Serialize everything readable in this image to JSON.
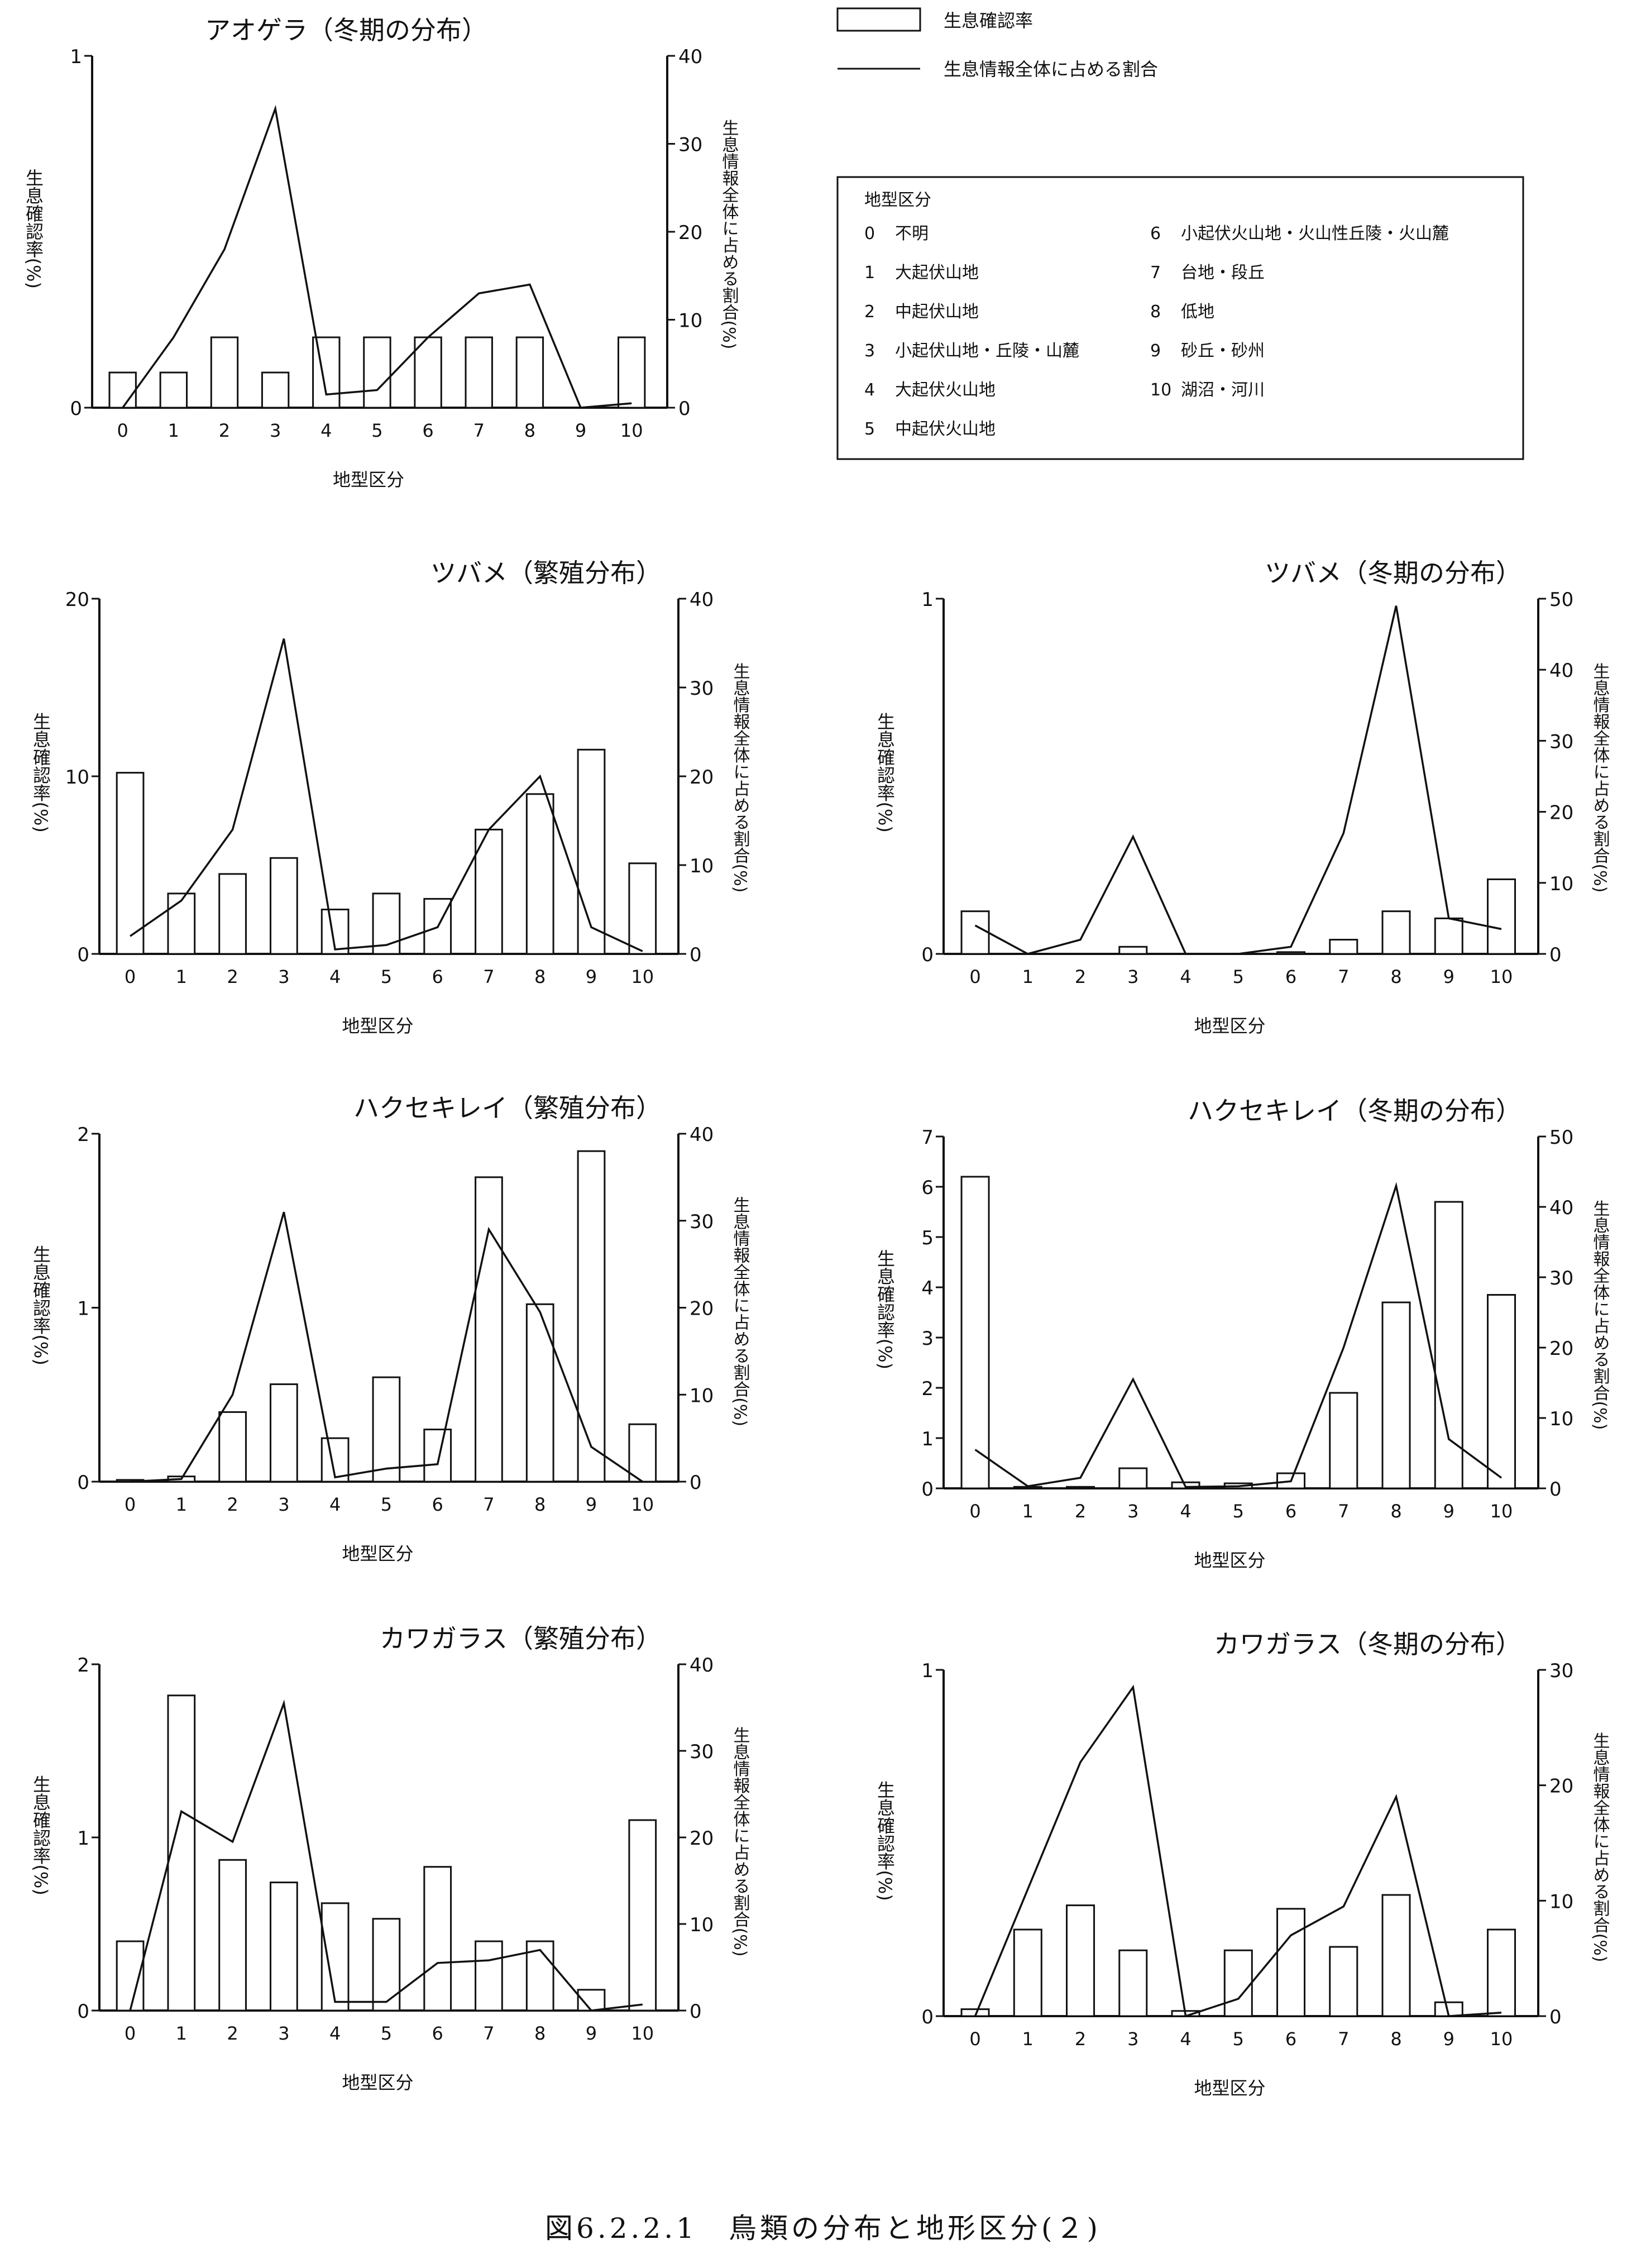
{
  "legend": {
    "bar_label": "生息確認率",
    "line_label": "生息情報全体に占める割合"
  },
  "terrain_key": {
    "title": "地型区分",
    "items": [
      {
        "code": "0",
        "label": "不明"
      },
      {
        "code": "1",
        "label": "大起伏山地"
      },
      {
        "code": "2",
        "label": "中起伏山地"
      },
      {
        "code": "3",
        "label": "小起伏山地・丘陵・山麓"
      },
      {
        "code": "4",
        "label": "大起伏火山地"
      },
      {
        "code": "5",
        "label": "中起伏火山地"
      },
      {
        "code": "6",
        "label": "小起伏火山地・火山性丘陵・火山麓"
      },
      {
        "code": "7",
        "label": "台地・段丘"
      },
      {
        "code": "8",
        "label": "低地"
      },
      {
        "code": "9",
        "label": "砂丘・砂州"
      },
      {
        "code": "10",
        "label": "湖沼・河川"
      }
    ]
  },
  "caption": "図6.2.2.1　鳥類の分布と地形区分(２)",
  "chart_data": [
    {
      "type": "bar",
      "title": "アオゲラ（冬期の分布）",
      "xlabel": "地型区分",
      "ylabel": "生息確認率(%)",
      "y2label": "生息情報全体に占める割合(%)",
      "categories": [
        "0",
        "1",
        "2",
        "3",
        "4",
        "5",
        "6",
        "7",
        "8",
        "9",
        "10"
      ],
      "ylim": [
        0,
        1
      ],
      "yticks": [
        "0",
        "1"
      ],
      "y2lim": [
        0,
        40
      ],
      "y2ticks": [
        "0",
        "10",
        "20",
        "30",
        "40"
      ],
      "series": [
        {
          "name": "生息確認率",
          "kind": "bar",
          "axis": "left",
          "values": [
            0.1,
            0.1,
            0.2,
            0.1,
            0.2,
            0.2,
            0.2,
            0.2,
            0.2,
            0,
            0.2
          ]
        },
        {
          "name": "生息情報全体に占める割合",
          "kind": "line",
          "axis": "right",
          "values": [
            0,
            8,
            18,
            34,
            1.5,
            2,
            8,
            13,
            14,
            0,
            0.5
          ]
        }
      ]
    },
    {
      "type": "bar",
      "title": "ツバメ（繁殖分布）",
      "xlabel": "地型区分",
      "ylabel": "生息確認率(%)",
      "y2label": "生息情報全体に占める割合(%)",
      "categories": [
        "0",
        "1",
        "2",
        "3",
        "4",
        "5",
        "6",
        "7",
        "8",
        "9",
        "10"
      ],
      "ylim": [
        0,
        20
      ],
      "yticks": [
        "0",
        "10",
        "20"
      ],
      "y2lim": [
        0,
        40
      ],
      "y2ticks": [
        "0",
        "10",
        "20",
        "30",
        "40"
      ],
      "series": [
        {
          "name": "生息確認率",
          "kind": "bar",
          "axis": "left",
          "values": [
            10.2,
            3.4,
            4.5,
            5.4,
            2.5,
            3.4,
            3.1,
            7,
            9,
            11.5,
            5.1
          ]
        },
        {
          "name": "生息情報全体に占める割合",
          "kind": "line",
          "axis": "right",
          "values": [
            2,
            6,
            14,
            35.5,
            0.5,
            1,
            3,
            14,
            20,
            3,
            0.3
          ]
        }
      ]
    },
    {
      "type": "bar",
      "title": "ツバメ（冬期の分布）",
      "xlabel": "地型区分",
      "ylabel": "生息確認率(%)",
      "y2label": "生息情報全体に占める割合(%)",
      "categories": [
        "0",
        "1",
        "2",
        "3",
        "4",
        "5",
        "6",
        "7",
        "8",
        "9",
        "10"
      ],
      "ylim": [
        0,
        1
      ],
      "yticks": [
        "0",
        "1"
      ],
      "y2lim": [
        0,
        50
      ],
      "y2ticks": [
        "0",
        "10",
        "20",
        "30",
        "40",
        "50"
      ],
      "series": [
        {
          "name": "生息確認率",
          "kind": "bar",
          "axis": "left",
          "values": [
            0.12,
            0,
            0,
            0.02,
            0,
            0,
            0.005,
            0.04,
            0.12,
            0.1,
            0.21
          ]
        },
        {
          "name": "生息情報全体に占める割合",
          "kind": "line",
          "axis": "right",
          "values": [
            4,
            0,
            2,
            16.5,
            0,
            0,
            1,
            17,
            49,
            5,
            3.5
          ]
        }
      ]
    },
    {
      "type": "bar",
      "title": "ハクセキレイ（繁殖分布）",
      "xlabel": "地型区分",
      "ylabel": "生息確認率(%)",
      "y2label": "生息情報全体に占める割合(%)",
      "categories": [
        "0",
        "1",
        "2",
        "3",
        "4",
        "5",
        "6",
        "7",
        "8",
        "9",
        "10"
      ],
      "ylim": [
        0,
        2
      ],
      "yticks": [
        "0",
        "1",
        "2"
      ],
      "y2lim": [
        0,
        40
      ],
      "y2ticks": [
        "0",
        "10",
        "20",
        "30",
        "40"
      ],
      "series": [
        {
          "name": "生息確認率",
          "kind": "bar",
          "axis": "left",
          "values": [
            0.01,
            0.03,
            0.4,
            0.56,
            0.25,
            0.6,
            0.3,
            1.75,
            1.02,
            1.9,
            0.33
          ]
        },
        {
          "name": "生息情報全体に占める割合",
          "kind": "line",
          "axis": "right",
          "values": [
            0,
            0.3,
            10,
            31,
            0.5,
            1.5,
            2,
            29,
            19.5,
            4,
            0
          ]
        }
      ]
    },
    {
      "type": "bar",
      "title": "ハクセキレイ（冬期の分布）",
      "xlabel": "地型区分",
      "ylabel": "生息確認率(%)",
      "y2label": "生息情報全体に占める割合(%)",
      "categories": [
        "0",
        "1",
        "2",
        "3",
        "4",
        "5",
        "6",
        "7",
        "8",
        "9",
        "10"
      ],
      "ylim": [
        0,
        7
      ],
      "yticks": [
        "0",
        "1",
        "2",
        "3",
        "4",
        "5",
        "6",
        "7"
      ],
      "y2lim": [
        0,
        50
      ],
      "y2ticks": [
        "0",
        "10",
        "20",
        "30",
        "40",
        "50"
      ],
      "series": [
        {
          "name": "生息確認率",
          "kind": "bar",
          "axis": "left",
          "values": [
            6.2,
            0.03,
            0.03,
            0.4,
            0.12,
            0.1,
            0.3,
            1.9,
            3.7,
            5.7,
            3.85
          ]
        },
        {
          "name": "生息情報全体に占める割合",
          "kind": "line",
          "axis": "right",
          "values": [
            5.5,
            0.3,
            1.5,
            15.5,
            0.2,
            0.3,
            1,
            20,
            43,
            7,
            1.5
          ]
        }
      ]
    },
    {
      "type": "bar",
      "title": "カワガラス（繁殖分布）",
      "xlabel": "地型区分",
      "ylabel": "生息確認率(%)",
      "y2label": "生息情報全体に占める割合(%)",
      "categories": [
        "0",
        "1",
        "2",
        "3",
        "4",
        "5",
        "6",
        "7",
        "8",
        "9",
        "10"
      ],
      "ylim": [
        0,
        2
      ],
      "yticks": [
        "0",
        "1",
        "2"
      ],
      "y2lim": [
        0,
        40
      ],
      "y2ticks": [
        "0",
        "10",
        "20",
        "30",
        "40"
      ],
      "series": [
        {
          "name": "生息確認率",
          "kind": "bar",
          "axis": "left",
          "values": [
            0.4,
            1.82,
            0.87,
            0.74,
            0.62,
            0.53,
            0.83,
            0.4,
            0.4,
            0.12,
            1.1
          ]
        },
        {
          "name": "生息情報全体に占める割合",
          "kind": "line",
          "axis": "right",
          "values": [
            0,
            23,
            19.5,
            35.5,
            1,
            1,
            5.5,
            5.8,
            7,
            0,
            0.7
          ]
        }
      ]
    },
    {
      "type": "bar",
      "title": "カワガラス（冬期の分布）",
      "xlabel": "地型区分",
      "ylabel": "生息確認率(%)",
      "y2label": "生息情報全体に占める割合(%)",
      "categories": [
        "0",
        "1",
        "2",
        "3",
        "4",
        "5",
        "6",
        "7",
        "8",
        "9",
        "10"
      ],
      "ylim": [
        0,
        1
      ],
      "yticks": [
        "0",
        "1"
      ],
      "y2lim": [
        0,
        30
      ],
      "y2ticks": [
        "0",
        "10",
        "20",
        "30"
      ],
      "series": [
        {
          "name": "生息確認率",
          "kind": "bar",
          "axis": "left",
          "values": [
            0.02,
            0.25,
            0.32,
            0.19,
            0.015,
            0.19,
            0.31,
            0.2,
            0.35,
            0.04,
            0.25
          ]
        },
        {
          "name": "生息情報全体に占める割合",
          "kind": "line",
          "axis": "right",
          "values": [
            0,
            11,
            22,
            28.5,
            0,
            1.5,
            7,
            9.5,
            19,
            0,
            0.3
          ]
        }
      ]
    }
  ]
}
